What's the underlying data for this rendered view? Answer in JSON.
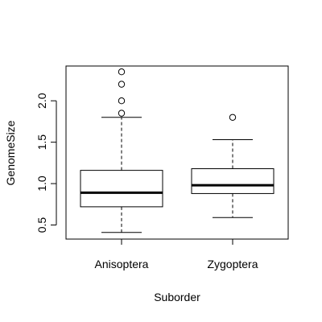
{
  "chart_data": {
    "type": "boxplot",
    "xlabel": "Suborder",
    "ylabel": "GenomeSize",
    "ylim": [
      0.33,
      2.42
    ],
    "yticks": [
      {
        "value": 0.5,
        "label": "0.5"
      },
      {
        "value": 1.0,
        "label": "1.0"
      },
      {
        "value": 1.5,
        "label": "1.5"
      },
      {
        "value": 2.0,
        "label": "2.0"
      }
    ],
    "categories": [
      "Anisoptera",
      "Zygoptera"
    ],
    "boxes": [
      {
        "category": "Anisoptera",
        "whisker_low": 0.41,
        "q1": 0.72,
        "median": 0.89,
        "q3": 1.16,
        "whisker_high": 1.8,
        "outliers": [
          1.85,
          2.0,
          2.2,
          2.35
        ]
      },
      {
        "category": "Zygoptera",
        "whisker_low": 0.59,
        "q1": 0.88,
        "median": 0.98,
        "q3": 1.18,
        "whisker_high": 1.53,
        "outliers": [
          1.8
        ]
      }
    ],
    "grid": false,
    "legend": "none"
  }
}
